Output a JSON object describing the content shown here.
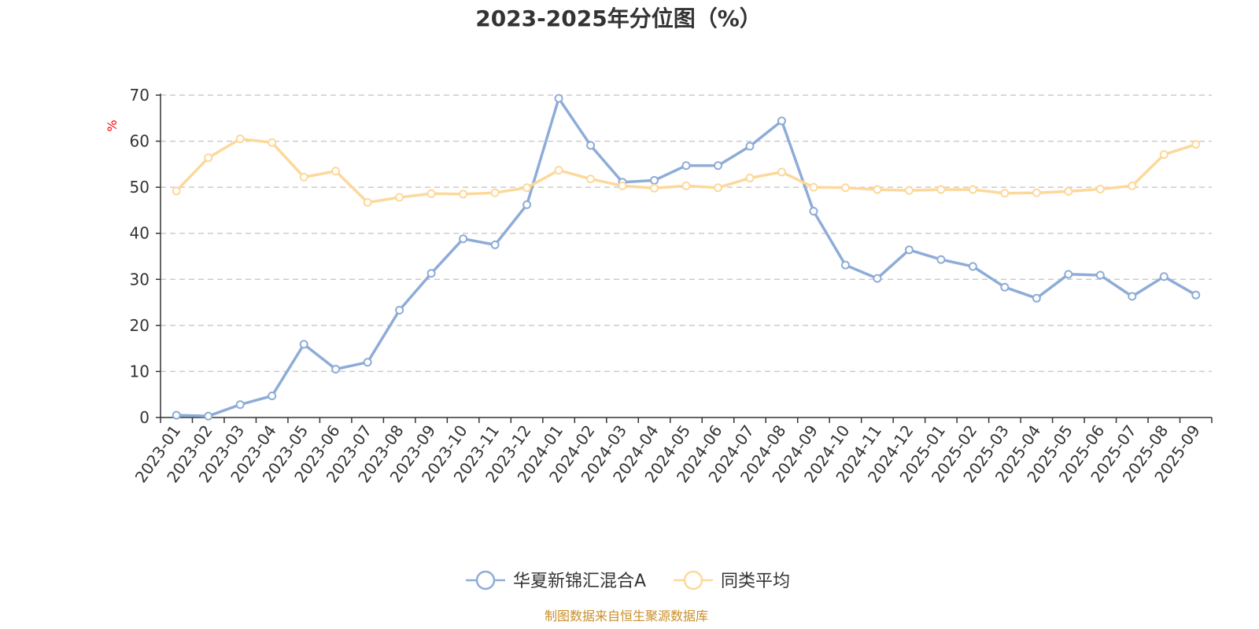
{
  "chart_data": {
    "type": "line",
    "title": "2023-2025年分位图（%）",
    "ylabel": "%",
    "ylim": [
      0,
      70
    ],
    "yticks": [
      0,
      10,
      20,
      30,
      40,
      50,
      60,
      70
    ],
    "grid": true,
    "legend_position": "bottom-center",
    "categories": [
      "2023-01",
      "2023-02",
      "2023-03",
      "2023-04",
      "2023-05",
      "2023-06",
      "2023-07",
      "2023-08",
      "2023-09",
      "2023-10",
      "2023-11",
      "2023-12",
      "2024-01",
      "2024-02",
      "2024-03",
      "2024-04",
      "2024-05",
      "2024-06",
      "2024-07",
      "2024-08",
      "2024-09",
      "2024-10",
      "2024-11",
      "2024-12",
      "2025-01",
      "2025-02",
      "2025-03",
      "2025-04",
      "2025-05",
      "2025-06",
      "2025-07",
      "2025-08",
      "2025-09"
    ],
    "series": [
      {
        "name": "华夏新锦汇混合A",
        "color": "#8eacd8",
        "values": [
          0.5,
          0.3,
          2.8,
          4.7,
          15.9,
          10.5,
          12.0,
          23.3,
          31.3,
          38.8,
          37.5,
          46.2,
          69.3,
          59.1,
          51.1,
          51.5,
          54.7,
          54.7,
          58.9,
          64.4,
          44.8,
          33.1,
          30.2,
          36.4,
          34.3,
          32.8,
          28.3,
          25.9,
          31.1,
          30.9,
          26.3,
          30.6,
          26.6
        ]
      },
      {
        "name": "同类平均",
        "color": "#fdd89a",
        "values": [
          49.2,
          56.4,
          60.5,
          59.7,
          52.2,
          53.5,
          46.7,
          47.8,
          48.6,
          48.5,
          48.8,
          49.9,
          53.7,
          51.8,
          50.3,
          49.8,
          50.3,
          49.9,
          52.0,
          53.3,
          50.0,
          49.9,
          49.5,
          49.3,
          49.5,
          49.5,
          48.7,
          48.8,
          49.1,
          49.6,
          50.3,
          57.1,
          59.3
        ]
      }
    ],
    "source": "制图数据来自恒生聚源数据库"
  }
}
